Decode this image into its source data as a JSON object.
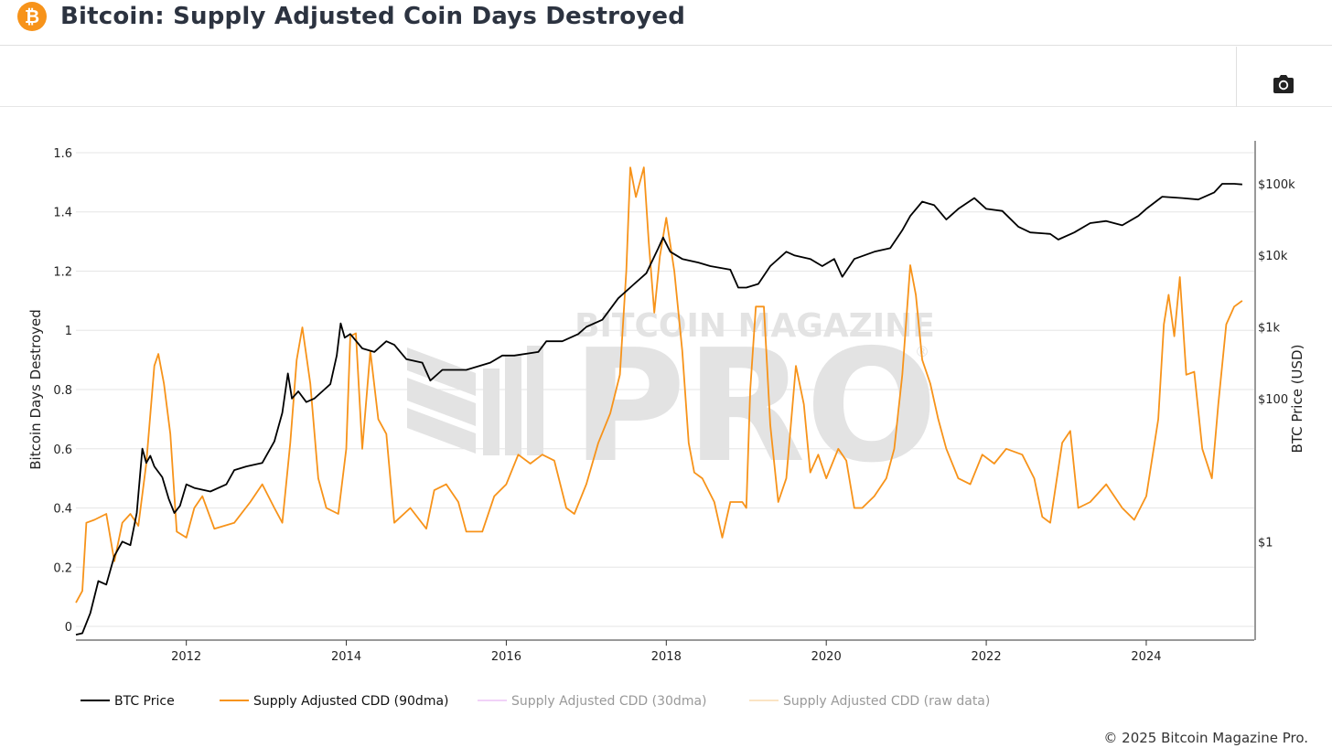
{
  "header": {
    "title": "Bitcoin: Supply Adjusted Coin Days Destroyed",
    "logo_glyph": "₿"
  },
  "toolbar": {
    "screenshot_icon": "camera-icon"
  },
  "footer": {
    "copyright": "© 2025 Bitcoin Magazine Pro."
  },
  "watermark": {
    "line1": "BITCOIN MAGAZINE",
    "line2": "PRO",
    "mark": "®"
  },
  "colors": {
    "btc_price": "#000000",
    "cdd_90dma": "#f7931a",
    "cdd_30dma": "#e3a6f0",
    "cdd_raw": "#f7c98a",
    "grid": "#e6e6e6",
    "watermark": "#e3e3e3"
  },
  "chart_data": {
    "type": "line",
    "title": "Bitcoin: Supply Adjusted Coin Days Destroyed",
    "ylabel_left": "Bitcoin Days Destroyed",
    "ylabel_right": "BTC Price (USD)",
    "x_range": [
      2010.62,
      2025.35
    ],
    "y_left_range": [
      -0.04,
      1.64
    ],
    "y_right_log_range": [
      -1.35,
      5.6
    ],
    "x_ticks": [
      {
        "value": 2012,
        "label": "2012"
      },
      {
        "value": 2014,
        "label": "2014"
      },
      {
        "value": 2016,
        "label": "2016"
      },
      {
        "value": 2018,
        "label": "2018"
      },
      {
        "value": 2020,
        "label": "2020"
      },
      {
        "value": 2022,
        "label": "2022"
      },
      {
        "value": 2024,
        "label": "2024"
      }
    ],
    "y_left_ticks": [
      {
        "value": 0,
        "label": "0"
      },
      {
        "value": 0.2,
        "label": "0.2"
      },
      {
        "value": 0.4,
        "label": "0.4"
      },
      {
        "value": 0.6,
        "label": "0.6"
      },
      {
        "value": 0.8,
        "label": "0.8"
      },
      {
        "value": 1.0,
        "label": "1"
      },
      {
        "value": 1.2,
        "label": "1.2"
      },
      {
        "value": 1.4,
        "label": "1.4"
      },
      {
        "value": 1.6,
        "label": "1.6"
      }
    ],
    "y_right_ticks": [
      {
        "log": 0,
        "label": "$1"
      },
      {
        "log": 2,
        "label": "$100"
      },
      {
        "log": 3,
        "label": "$1k"
      },
      {
        "log": 4,
        "label": "$10k"
      },
      {
        "log": 5,
        "label": "$100k"
      }
    ],
    "legend": [
      {
        "name": "BTC Price",
        "color": "#000000",
        "active": true
      },
      {
        "name": "Supply Adjusted CDD (90dma)",
        "color": "#f7931a",
        "active": true
      },
      {
        "name": "Supply Adjusted CDD (30dma)",
        "color": "#e3a6f0",
        "active": false
      },
      {
        "name": "Supply Adjusted CDD (raw data)",
        "color": "#f7c98a",
        "active": false
      }
    ],
    "series": [
      {
        "name": "BTC Price",
        "axis": "right_log",
        "points": [
          [
            2010.62,
            -1.3
          ],
          [
            2010.7,
            -1.28
          ],
          [
            2010.8,
            -1.0
          ],
          [
            2010.9,
            -0.55
          ],
          [
            2011.0,
            -0.6
          ],
          [
            2011.1,
            -0.2
          ],
          [
            2011.2,
            0.0
          ],
          [
            2011.3,
            -0.05
          ],
          [
            2011.38,
            0.4
          ],
          [
            2011.45,
            1.3
          ],
          [
            2011.5,
            1.1
          ],
          [
            2011.55,
            1.2
          ],
          [
            2011.6,
            1.05
          ],
          [
            2011.7,
            0.9
          ],
          [
            2011.78,
            0.6
          ],
          [
            2011.85,
            0.4
          ],
          [
            2011.92,
            0.5
          ],
          [
            2012.0,
            0.8
          ],
          [
            2012.1,
            0.75
          ],
          [
            2012.3,
            0.7
          ],
          [
            2012.5,
            0.8
          ],
          [
            2012.6,
            1.0
          ],
          [
            2012.75,
            1.05
          ],
          [
            2012.95,
            1.1
          ],
          [
            2013.1,
            1.4
          ],
          [
            2013.2,
            1.8
          ],
          [
            2013.27,
            2.35
          ],
          [
            2013.32,
            2.0
          ],
          [
            2013.4,
            2.1
          ],
          [
            2013.5,
            1.95
          ],
          [
            2013.6,
            2.0
          ],
          [
            2013.7,
            2.1
          ],
          [
            2013.8,
            2.2
          ],
          [
            2013.88,
            2.6
          ],
          [
            2013.93,
            3.05
          ],
          [
            2013.98,
            2.85
          ],
          [
            2014.05,
            2.9
          ],
          [
            2014.2,
            2.7
          ],
          [
            2014.35,
            2.65
          ],
          [
            2014.5,
            2.8
          ],
          [
            2014.6,
            2.75
          ],
          [
            2014.75,
            2.55
          ],
          [
            2014.95,
            2.5
          ],
          [
            2015.05,
            2.25
          ],
          [
            2015.2,
            2.4
          ],
          [
            2015.5,
            2.4
          ],
          [
            2015.8,
            2.5
          ],
          [
            2015.95,
            2.6
          ],
          [
            2016.1,
            2.6
          ],
          [
            2016.4,
            2.65
          ],
          [
            2016.5,
            2.8
          ],
          [
            2016.7,
            2.8
          ],
          [
            2016.9,
            2.9
          ],
          [
            2017.0,
            3.0
          ],
          [
            2017.2,
            3.1
          ],
          [
            2017.4,
            3.4
          ],
          [
            2017.6,
            3.6
          ],
          [
            2017.75,
            3.75
          ],
          [
            2017.9,
            4.1
          ],
          [
            2017.96,
            4.25
          ],
          [
            2018.05,
            4.05
          ],
          [
            2018.2,
            3.95
          ],
          [
            2018.4,
            3.9
          ],
          [
            2018.55,
            3.85
          ],
          [
            2018.8,
            3.8
          ],
          [
            2018.9,
            3.55
          ],
          [
            2019.0,
            3.55
          ],
          [
            2019.15,
            3.6
          ],
          [
            2019.3,
            3.85
          ],
          [
            2019.5,
            4.05
          ],
          [
            2019.6,
            4.0
          ],
          [
            2019.8,
            3.95
          ],
          [
            2019.95,
            3.85
          ],
          [
            2020.1,
            3.95
          ],
          [
            2020.2,
            3.7
          ],
          [
            2020.35,
            3.95
          ],
          [
            2020.6,
            4.05
          ],
          [
            2020.8,
            4.1
          ],
          [
            2020.95,
            4.35
          ],
          [
            2021.05,
            4.55
          ],
          [
            2021.2,
            4.75
          ],
          [
            2021.35,
            4.7
          ],
          [
            2021.5,
            4.5
          ],
          [
            2021.65,
            4.65
          ],
          [
            2021.85,
            4.8
          ],
          [
            2022.0,
            4.65
          ],
          [
            2022.2,
            4.62
          ],
          [
            2022.4,
            4.4
          ],
          [
            2022.55,
            4.32
          ],
          [
            2022.8,
            4.3
          ],
          [
            2022.9,
            4.22
          ],
          [
            2023.1,
            4.32
          ],
          [
            2023.3,
            4.45
          ],
          [
            2023.5,
            4.48
          ],
          [
            2023.7,
            4.42
          ],
          [
            2023.9,
            4.55
          ],
          [
            2024.0,
            4.65
          ],
          [
            2024.2,
            4.82
          ],
          [
            2024.45,
            4.8
          ],
          [
            2024.65,
            4.78
          ],
          [
            2024.85,
            4.88
          ],
          [
            2024.95,
            5.0
          ],
          [
            2025.1,
            5.0
          ],
          [
            2025.2,
            4.99
          ]
        ]
      },
      {
        "name": "Supply Adjusted CDD (90dma)",
        "axis": "left",
        "points": [
          [
            2010.62,
            0.08
          ],
          [
            2010.7,
            0.12
          ],
          [
            2010.75,
            0.35
          ],
          [
            2010.85,
            0.36
          ],
          [
            2011.0,
            0.38
          ],
          [
            2011.1,
            0.22
          ],
          [
            2011.2,
            0.35
          ],
          [
            2011.3,
            0.38
          ],
          [
            2011.4,
            0.34
          ],
          [
            2011.5,
            0.55
          ],
          [
            2011.6,
            0.88
          ],
          [
            2011.65,
            0.92
          ],
          [
            2011.72,
            0.82
          ],
          [
            2011.8,
            0.65
          ],
          [
            2011.88,
            0.32
          ],
          [
            2012.0,
            0.3
          ],
          [
            2012.1,
            0.4
          ],
          [
            2012.2,
            0.44
          ],
          [
            2012.35,
            0.33
          ],
          [
            2012.6,
            0.35
          ],
          [
            2012.8,
            0.42
          ],
          [
            2012.95,
            0.48
          ],
          [
            2013.1,
            0.4
          ],
          [
            2013.2,
            0.35
          ],
          [
            2013.3,
            0.62
          ],
          [
            2013.38,
            0.9
          ],
          [
            2013.45,
            1.01
          ],
          [
            2013.55,
            0.82
          ],
          [
            2013.65,
            0.5
          ],
          [
            2013.75,
            0.4
          ],
          [
            2013.9,
            0.38
          ],
          [
            2014.0,
            0.6
          ],
          [
            2014.05,
            0.98
          ],
          [
            2014.12,
            0.99
          ],
          [
            2014.2,
            0.6
          ],
          [
            2014.3,
            0.93
          ],
          [
            2014.4,
            0.7
          ],
          [
            2014.5,
            0.65
          ],
          [
            2014.6,
            0.35
          ],
          [
            2014.8,
            0.4
          ],
          [
            2015.0,
            0.33
          ],
          [
            2015.1,
            0.46
          ],
          [
            2015.25,
            0.48
          ],
          [
            2015.4,
            0.42
          ],
          [
            2015.5,
            0.32
          ],
          [
            2015.7,
            0.32
          ],
          [
            2015.85,
            0.44
          ],
          [
            2016.0,
            0.48
          ],
          [
            2016.15,
            0.58
          ],
          [
            2016.3,
            0.55
          ],
          [
            2016.45,
            0.58
          ],
          [
            2016.6,
            0.56
          ],
          [
            2016.75,
            0.4
          ],
          [
            2016.85,
            0.38
          ],
          [
            2017.0,
            0.48
          ],
          [
            2017.15,
            0.62
          ],
          [
            2017.3,
            0.72
          ],
          [
            2017.42,
            0.85
          ],
          [
            2017.5,
            1.2
          ],
          [
            2017.55,
            1.55
          ],
          [
            2017.62,
            1.45
          ],
          [
            2017.72,
            1.55
          ],
          [
            2017.78,
            1.3
          ],
          [
            2017.85,
            1.06
          ],
          [
            2017.92,
            1.25
          ],
          [
            2018.0,
            1.38
          ],
          [
            2018.1,
            1.2
          ],
          [
            2018.2,
            0.93
          ],
          [
            2018.28,
            0.62
          ],
          [
            2018.35,
            0.52
          ],
          [
            2018.45,
            0.5
          ],
          [
            2018.6,
            0.42
          ],
          [
            2018.7,
            0.3
          ],
          [
            2018.8,
            0.42
          ],
          [
            2018.95,
            0.42
          ],
          [
            2019.0,
            0.4
          ],
          [
            2019.05,
            0.8
          ],
          [
            2019.12,
            1.08
          ],
          [
            2019.22,
            1.08
          ],
          [
            2019.3,
            0.68
          ],
          [
            2019.4,
            0.42
          ],
          [
            2019.5,
            0.5
          ],
          [
            2019.62,
            0.88
          ],
          [
            2019.72,
            0.75
          ],
          [
            2019.8,
            0.52
          ],
          [
            2019.9,
            0.58
          ],
          [
            2020.0,
            0.5
          ],
          [
            2020.15,
            0.6
          ],
          [
            2020.25,
            0.56
          ],
          [
            2020.35,
            0.4
          ],
          [
            2020.45,
            0.4
          ],
          [
            2020.6,
            0.44
          ],
          [
            2020.75,
            0.5
          ],
          [
            2020.85,
            0.6
          ],
          [
            2020.95,
            0.85
          ],
          [
            2021.05,
            1.22
          ],
          [
            2021.12,
            1.12
          ],
          [
            2021.2,
            0.9
          ],
          [
            2021.3,
            0.82
          ],
          [
            2021.4,
            0.7
          ],
          [
            2021.5,
            0.6
          ],
          [
            2021.65,
            0.5
          ],
          [
            2021.8,
            0.48
          ],
          [
            2021.95,
            0.58
          ],
          [
            2022.1,
            0.55
          ],
          [
            2022.25,
            0.6
          ],
          [
            2022.45,
            0.58
          ],
          [
            2022.6,
            0.5
          ],
          [
            2022.7,
            0.37
          ],
          [
            2022.8,
            0.35
          ],
          [
            2022.95,
            0.62
          ],
          [
            2023.05,
            0.66
          ],
          [
            2023.15,
            0.4
          ],
          [
            2023.3,
            0.42
          ],
          [
            2023.5,
            0.48
          ],
          [
            2023.7,
            0.4
          ],
          [
            2023.85,
            0.36
          ],
          [
            2024.0,
            0.44
          ],
          [
            2024.15,
            0.7
          ],
          [
            2024.22,
            1.02
          ],
          [
            2024.28,
            1.12
          ],
          [
            2024.35,
            0.98
          ],
          [
            2024.42,
            1.18
          ],
          [
            2024.5,
            0.85
          ],
          [
            2024.6,
            0.86
          ],
          [
            2024.7,
            0.6
          ],
          [
            2024.82,
            0.5
          ],
          [
            2024.9,
            0.75
          ],
          [
            2025.0,
            1.02
          ],
          [
            2025.1,
            1.08
          ],
          [
            2025.2,
            1.1
          ]
        ]
      }
    ]
  }
}
